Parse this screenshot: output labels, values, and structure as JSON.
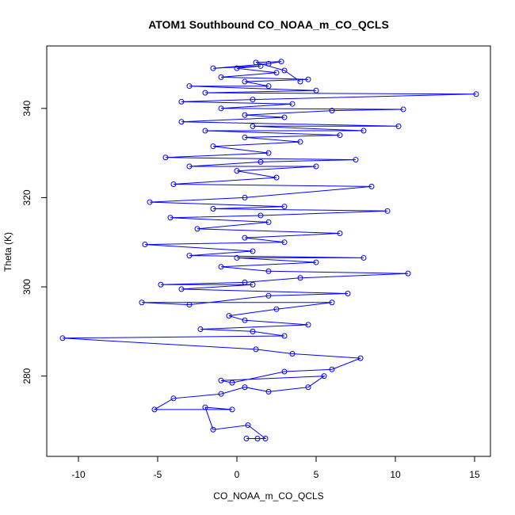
{
  "chart_data": {
    "type": "line",
    "title": "ATOM1 Southbound CO_NOAA_m_CO_QCLS",
    "xlabel": "CO_NOAA_m_CO_QCLS",
    "ylabel": "Theta (K)",
    "xlim": [
      -12,
      16
    ],
    "ylim": [
      262,
      354
    ],
    "xticks": [
      -10,
      -5,
      0,
      5,
      10,
      15
    ],
    "yticks": [
      280,
      300,
      320,
      340
    ],
    "colors": {
      "series": "#0000ff",
      "axis": "#000000"
    },
    "markers": "open-circle",
    "grid": false,
    "series": [
      {
        "values": [
          [
            0.6,
            266.0
          ],
          [
            1.3,
            266.0
          ],
          [
            1.8,
            266.0
          ],
          [
            0.7,
            269.0
          ],
          [
            -1.5,
            268.0
          ],
          [
            -2.0,
            273.0
          ],
          [
            -0.3,
            272.5
          ],
          [
            -5.2,
            272.5
          ],
          [
            -4.0,
            275.0
          ],
          [
            -1.0,
            276.0
          ],
          [
            0.5,
            277.5
          ],
          [
            2.0,
            276.5
          ],
          [
            4.5,
            277.5
          ],
          [
            5.5,
            280.0
          ],
          [
            -1.0,
            279.0
          ],
          [
            -0.3,
            278.5
          ],
          [
            3.0,
            281.0
          ],
          [
            6.0,
            281.5
          ],
          [
            7.8,
            284.0
          ],
          [
            3.5,
            285.0
          ],
          [
            1.2,
            286.0
          ],
          [
            -11.0,
            288.5
          ],
          [
            3.0,
            289.0
          ],
          [
            1.0,
            290.0
          ],
          [
            -2.3,
            290.5
          ],
          [
            4.5,
            291.5
          ],
          [
            0.5,
            292.5
          ],
          [
            -0.5,
            293.5
          ],
          [
            2.5,
            295.0
          ],
          [
            6.0,
            296.5
          ],
          [
            -6.0,
            296.5
          ],
          [
            -3.0,
            296.0
          ],
          [
            2.0,
            298.0
          ],
          [
            7.0,
            298.5
          ],
          [
            -3.5,
            299.5
          ],
          [
            1.0,
            300.5
          ],
          [
            -4.8,
            300.5
          ],
          [
            0.5,
            301.0
          ],
          [
            4.0,
            302.0
          ],
          [
            10.8,
            303.0
          ],
          [
            2.0,
            303.5
          ],
          [
            -1.0,
            304.5
          ],
          [
            5.0,
            305.5
          ],
          [
            0.0,
            306.5
          ],
          [
            8.0,
            306.5
          ],
          [
            -3.0,
            307.0
          ],
          [
            1.0,
            308.0
          ],
          [
            -5.8,
            309.5
          ],
          [
            3.0,
            310.0
          ],
          [
            0.5,
            311.0
          ],
          [
            6.5,
            312.0
          ],
          [
            -2.5,
            313.0
          ],
          [
            2.0,
            314.5
          ],
          [
            -4.2,
            315.5
          ],
          [
            1.5,
            316.0
          ],
          [
            9.5,
            317.0
          ],
          [
            -1.5,
            317.5
          ],
          [
            3.0,
            318.0
          ],
          [
            -5.5,
            319.0
          ],
          [
            0.5,
            320.0
          ],
          [
            8.5,
            322.5
          ],
          [
            -4.0,
            323.0
          ],
          [
            2.5,
            324.5
          ],
          [
            0.0,
            326.0
          ],
          [
            5.0,
            327.0
          ],
          [
            -3.0,
            327.0
          ],
          [
            1.5,
            328.0
          ],
          [
            7.5,
            328.5
          ],
          [
            -4.5,
            329.0
          ],
          [
            2.0,
            330.0
          ],
          [
            -1.5,
            331.5
          ],
          [
            4.0,
            332.5
          ],
          [
            0.5,
            333.5
          ],
          [
            6.5,
            334.0
          ],
          [
            -2.0,
            335.0
          ],
          [
            8.0,
            335.0
          ],
          [
            1.0,
            336.0
          ],
          [
            10.2,
            336.0
          ],
          [
            -3.5,
            337.0
          ],
          [
            3.0,
            338.0
          ],
          [
            0.5,
            338.5
          ],
          [
            6.0,
            339.5
          ],
          [
            10.5,
            339.8
          ],
          [
            -1.0,
            340.0
          ],
          [
            3.5,
            341.0
          ],
          [
            -3.5,
            341.5
          ],
          [
            1.0,
            342.0
          ],
          [
            15.1,
            343.2
          ],
          [
            -2.0,
            343.5
          ],
          [
            5.0,
            344.0
          ],
          [
            -3.0,
            345.0
          ],
          [
            2.0,
            345.0
          ],
          [
            0.5,
            346.0
          ],
          [
            4.5,
            346.5
          ],
          [
            -1.0,
            347.0
          ],
          [
            2.5,
            348.0
          ],
          [
            0.0,
            349.0
          ],
          [
            1.5,
            349.5
          ],
          [
            -1.5,
            349.0
          ],
          [
            2.0,
            350.0
          ],
          [
            2.8,
            350.5
          ],
          [
            1.2,
            350.3
          ],
          [
            3.0,
            348.5
          ],
          [
            4.0,
            346.0
          ]
        ]
      }
    ]
  }
}
